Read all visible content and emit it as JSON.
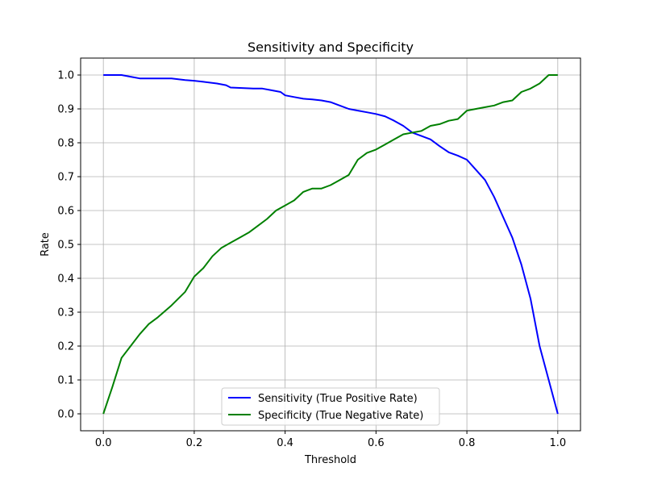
{
  "chart_data": {
    "type": "line",
    "title": "Sensitivity and Specificity",
    "xlabel": "Threshold",
    "ylabel": "Rate",
    "xlim": [
      -0.05,
      1.05
    ],
    "ylim": [
      -0.05,
      1.05
    ],
    "xticks": [
      0.0,
      0.2,
      0.4,
      0.6,
      0.8,
      1.0
    ],
    "xtick_labels": [
      "0.0",
      "0.2",
      "0.4",
      "0.6",
      "0.8",
      "1.0"
    ],
    "yticks": [
      0.0,
      0.1,
      0.2,
      0.3,
      0.4,
      0.5,
      0.6,
      0.7,
      0.8,
      0.9,
      1.0
    ],
    "ytick_labels": [
      "0.0",
      "0.1",
      "0.2",
      "0.3",
      "0.4",
      "0.5",
      "0.6",
      "0.7",
      "0.8",
      "0.9",
      "1.0"
    ],
    "grid": true,
    "legend_position": "bottom-center",
    "series": [
      {
        "name": "Sensitivity (True Positive Rate)",
        "color": "#0000ff",
        "x": [
          0.0,
          0.02,
          0.04,
          0.06,
          0.08,
          0.1,
          0.12,
          0.15,
          0.18,
          0.2,
          0.22,
          0.25,
          0.27,
          0.28,
          0.3,
          0.33,
          0.35,
          0.37,
          0.39,
          0.4,
          0.42,
          0.44,
          0.46,
          0.48,
          0.5,
          0.52,
          0.54,
          0.56,
          0.58,
          0.6,
          0.62,
          0.64,
          0.66,
          0.68,
          0.7,
          0.72,
          0.74,
          0.76,
          0.78,
          0.8,
          0.82,
          0.84,
          0.86,
          0.88,
          0.9,
          0.92,
          0.94,
          0.96,
          0.98,
          1.0
        ],
        "y": [
          1.0,
          1.0,
          1.0,
          0.995,
          0.99,
          0.99,
          0.99,
          0.99,
          0.985,
          0.983,
          0.98,
          0.975,
          0.97,
          0.963,
          0.962,
          0.96,
          0.96,
          0.955,
          0.95,
          0.94,
          0.935,
          0.93,
          0.928,
          0.925,
          0.92,
          0.91,
          0.9,
          0.895,
          0.89,
          0.885,
          0.878,
          0.865,
          0.85,
          0.83,
          0.82,
          0.81,
          0.79,
          0.772,
          0.762,
          0.75,
          0.72,
          0.69,
          0.64,
          0.58,
          0.52,
          0.44,
          0.34,
          0.2,
          0.1,
          0.0
        ]
      },
      {
        "name": "Specificity (True Negative Rate)",
        "color": "#008000",
        "x": [
          0.0,
          0.02,
          0.04,
          0.06,
          0.08,
          0.1,
          0.12,
          0.15,
          0.18,
          0.2,
          0.22,
          0.24,
          0.26,
          0.28,
          0.3,
          0.32,
          0.34,
          0.36,
          0.38,
          0.4,
          0.42,
          0.44,
          0.46,
          0.48,
          0.5,
          0.52,
          0.54,
          0.56,
          0.58,
          0.6,
          0.62,
          0.64,
          0.66,
          0.68,
          0.7,
          0.72,
          0.74,
          0.76,
          0.78,
          0.8,
          0.82,
          0.84,
          0.86,
          0.88,
          0.9,
          0.92,
          0.94,
          0.96,
          0.98,
          1.0
        ],
        "y": [
          0.0,
          0.08,
          0.165,
          0.2,
          0.235,
          0.265,
          0.285,
          0.32,
          0.36,
          0.405,
          0.43,
          0.465,
          0.49,
          0.505,
          0.52,
          0.535,
          0.555,
          0.575,
          0.6,
          0.615,
          0.63,
          0.655,
          0.665,
          0.665,
          0.675,
          0.69,
          0.705,
          0.75,
          0.77,
          0.78,
          0.795,
          0.81,
          0.825,
          0.83,
          0.835,
          0.85,
          0.855,
          0.865,
          0.87,
          0.895,
          0.9,
          0.905,
          0.91,
          0.92,
          0.925,
          0.95,
          0.96,
          0.975,
          1.0,
          1.0
        ]
      }
    ]
  }
}
